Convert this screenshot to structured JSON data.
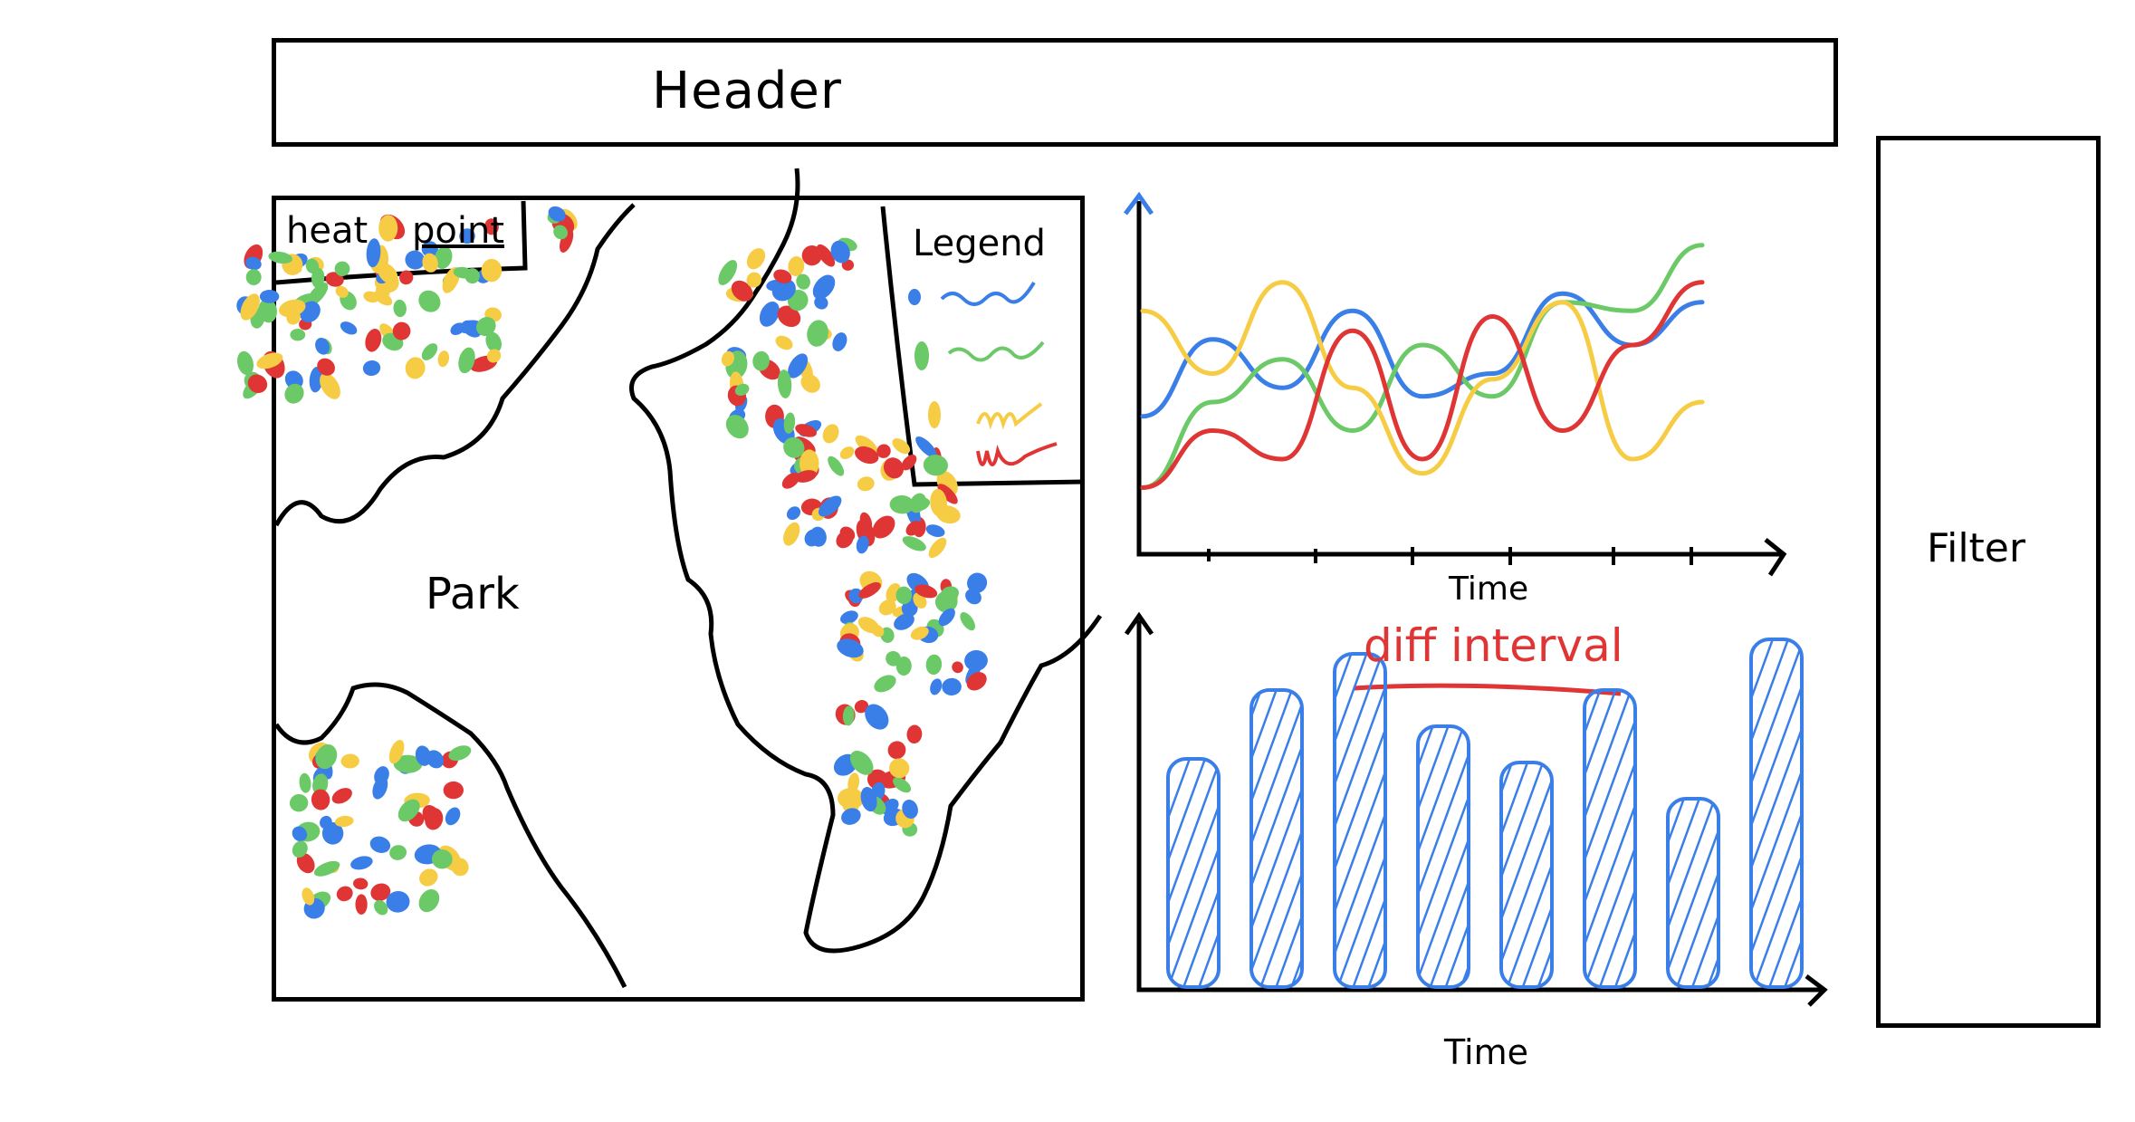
{
  "header": {
    "title": "Header"
  },
  "map": {
    "tabs": [
      {
        "label": "heat"
      },
      {
        "label": "point"
      }
    ],
    "park_label": "Park",
    "legend_title": "Legend",
    "dot_colors": {
      "blue": "#3a7ee8",
      "green": "#6cc967",
      "yellow": "#f7cc45",
      "red": "#e03535"
    }
  },
  "line_chart": {
    "xlabel": "Time",
    "series_colors": [
      "#3a7ee8",
      "#6cc967",
      "#f7cc45",
      "#e03535"
    ]
  },
  "bar_chart": {
    "xlabel": "Time",
    "annotation": "diff interval",
    "bar_color": "#3a7ee8"
  },
  "filter": {
    "label": "Filter"
  },
  "chart_data": [
    {
      "type": "line",
      "xlabel": "Time",
      "series": [
        {
          "values": [
            0.35,
            0.62,
            0.45,
            0.72,
            0.42,
            0.5,
            0.78,
            0.6,
            0.75
          ]
        },
        {
          "values": [
            0.1,
            0.4,
            0.55,
            0.3,
            0.6,
            0.42,
            0.75,
            0.72,
            0.95
          ]
        },
        {
          "values": [
            0.72,
            0.5,
            0.82,
            0.45,
            0.15,
            0.48,
            0.75,
            0.2,
            0.4
          ]
        },
        {
          "values": [
            0.1,
            0.3,
            0.2,
            0.65,
            0.2,
            0.7,
            0.3,
            0.6,
            0.82
          ]
        }
      ]
    },
    {
      "type": "bar",
      "xlabel": "Time",
      "annotation": "diff interval",
      "values": [
        0.63,
        0.82,
        0.92,
        0.72,
        0.62,
        0.82,
        0.52,
        0.96
      ]
    }
  ]
}
